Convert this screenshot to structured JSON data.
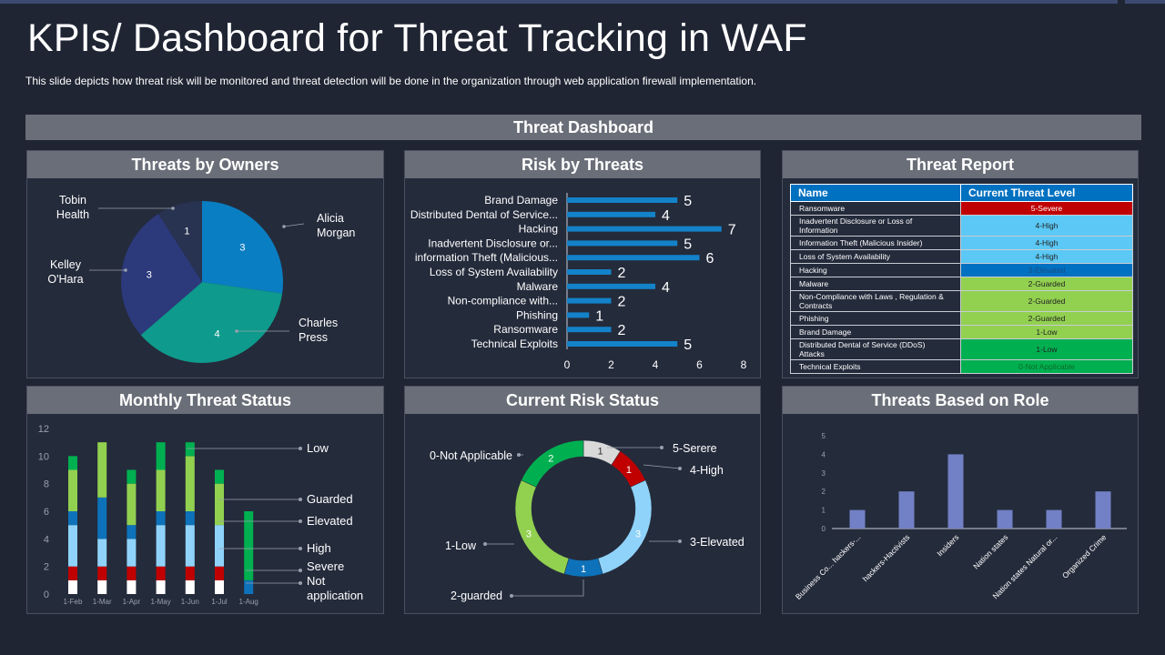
{
  "title": "KPIs/ Dashboard for Threat Tracking in WAF",
  "subtitle": "This slide depicts how threat risk will be monitored and threat detection will be done in the organization through web application firewall implementation.",
  "dashboard_label": "Threat Dashboard",
  "panels": {
    "owners": "Threats by Owners",
    "risk": "Risk by Threats",
    "report": "Threat Report",
    "monthly": "Monthly Threat Status",
    "current": "Current Risk Status",
    "role": "Threats Based on Role"
  },
  "report": {
    "headers": [
      "Name",
      "Current Threat Level"
    ],
    "rows": [
      {
        "name": "Ransomware",
        "level": "5-Severe",
        "color": "#c00000",
        "text": "#ffffff"
      },
      {
        "name": "Inadvertent Disclosure or Loss of Information",
        "level": "4-High",
        "color": "#5bc8f5",
        "text": "#222222"
      },
      {
        "name": "Information Theft (Malicious Insider)",
        "level": "4-High",
        "color": "#5bc8f5",
        "text": "#222222"
      },
      {
        "name": "Loss of System Availability",
        "level": "4-High",
        "color": "#5bc8f5",
        "text": "#222222"
      },
      {
        "name": "Hacking",
        "level": "3-Elevated",
        "color": "#0070c0",
        "text": "#1a4f80"
      },
      {
        "name": "Malware",
        "level": "2-Guarded",
        "color": "#92d050",
        "text": "#222222"
      },
      {
        "name": "Non-Compliance with Laws , Regulation & Contracts",
        "level": "2-Guarded",
        "color": "#92d050",
        "text": "#222222"
      },
      {
        "name": "Phishing",
        "level": "2-Guarded",
        "color": "#92d050",
        "text": "#222222"
      },
      {
        "name": "Brand Damage",
        "level": "1-Low",
        "color": "#92d050",
        "text": "#222222"
      },
      {
        "name": "Distributed Dental of Service (DDoS) Attacks",
        "level": "1-Low",
        "color": "#00b050",
        "text": "#222222"
      },
      {
        "name": "Technical Exploits",
        "level": "0-Not Applicable",
        "color": "#00b050",
        "text": "#0a6a2a"
      }
    ]
  },
  "chart_data": [
    {
      "type": "pie",
      "title": "Threats by Owners",
      "categories": [
        "Alicia Morgan",
        "Charles Press",
        "Kelley O'Hara",
        "Tobin Health"
      ],
      "values": [
        3,
        4,
        3,
        1
      ],
      "label_lines": [
        [
          "Alicia",
          "Morgan"
        ],
        [
          "Charles",
          "Press"
        ],
        [
          "Kelley",
          "O'Hara"
        ],
        [
          "Tobin",
          "Health"
        ]
      ],
      "colors": [
        "#0a7ec2",
        "#0e9a8c",
        "#2c3a7c",
        "#283352"
      ]
    },
    {
      "type": "bar",
      "orientation": "horizontal",
      "title": "Risk by Threats",
      "categories": [
        "Brand Damage",
        "Distributed Dental of Service...",
        "Hacking",
        "Inadvertent Disclosure or...",
        "information Theft (Malicious...",
        "Loss of System Availability",
        "Malware",
        "Non-compliance with...",
        "Phishing",
        "Ransomware",
        "Technical Exploits"
      ],
      "values": [
        5,
        4,
        7,
        5,
        6,
        2,
        4,
        2,
        1,
        2,
        5
      ],
      "xlim": [
        0,
        8
      ],
      "xticks": [
        "0",
        "2",
        "4",
        "6",
        "8"
      ],
      "color": "#1382c9"
    },
    {
      "type": "bar",
      "stacked": true,
      "title": "Monthly Threat Status",
      "categories": [
        "1-Feb",
        "1-Mar",
        "1-Apr",
        "1-May",
        "1-Jun",
        "1-Jul",
        "1-Aug"
      ],
      "ylim": [
        0,
        12
      ],
      "yticks": [
        "0",
        "2",
        "4",
        "6",
        "8",
        "10",
        "12"
      ],
      "series": [
        {
          "name": "Not application",
          "label_lines": [
            "Not",
            "application"
          ],
          "color": "#ffffff",
          "values": [
            1,
            1,
            1,
            1,
            1,
            1,
            0
          ]
        },
        {
          "name": "Severe",
          "label_lines": [
            "Severe"
          ],
          "color": "#c00000",
          "values": [
            1,
            1,
            1,
            1,
            1,
            1,
            0
          ]
        },
        {
          "name": "High",
          "label_lines": [
            "High"
          ],
          "color": "#8fd3fa",
          "values": [
            3,
            2,
            2,
            3,
            3,
            3,
            0
          ]
        },
        {
          "name": "Elevated",
          "label_lines": [
            "Elevated"
          ],
          "color": "#0d72b9",
          "values": [
            1,
            3,
            1,
            1,
            1,
            0,
            1
          ]
        },
        {
          "name": "Guarded",
          "label_lines": [
            "Guarded"
          ],
          "color": "#92d050",
          "values": [
            3,
            4,
            3,
            3,
            4,
            3,
            0
          ]
        },
        {
          "name": "Low",
          "label_lines": [
            "Low"
          ],
          "color": "#00b050",
          "values": [
            1,
            0,
            1,
            2,
            1,
            1,
            5
          ]
        }
      ]
    },
    {
      "type": "pie",
      "donut": true,
      "title": "Current Risk Status",
      "categories": [
        "5-Serere",
        "4-High",
        "3-Elevated",
        "1",
        "1-Low",
        "2-guarded",
        "0-Not Applicable"
      ],
      "values": [
        1,
        1,
        3,
        1,
        3,
        0,
        2
      ],
      "slice_labels": [
        "5-Serere",
        "4-High",
        "3-Elevated",
        "",
        "1-Low",
        "2-guarded",
        "0-Not Applicable"
      ],
      "colors": [
        "#d9d9d9",
        "#c00000",
        "#8fd3fa",
        "#0d72b9",
        "#92d050",
        "#92d050",
        "#00b050"
      ]
    },
    {
      "type": "bar",
      "title": "Threats Based on Role",
      "categories": [
        "Business Co... hackers-...",
        "hackers-Hactivists",
        "Insiders",
        "Nation states",
        "Nation states Natural or...",
        "Organized Crime"
      ],
      "values": [
        1,
        2,
        4,
        1,
        1,
        2
      ],
      "ylim": [
        0,
        5
      ],
      "yticks": [
        "0",
        "1",
        "2",
        "3",
        "4",
        "5"
      ],
      "color": "#7280c6"
    }
  ]
}
